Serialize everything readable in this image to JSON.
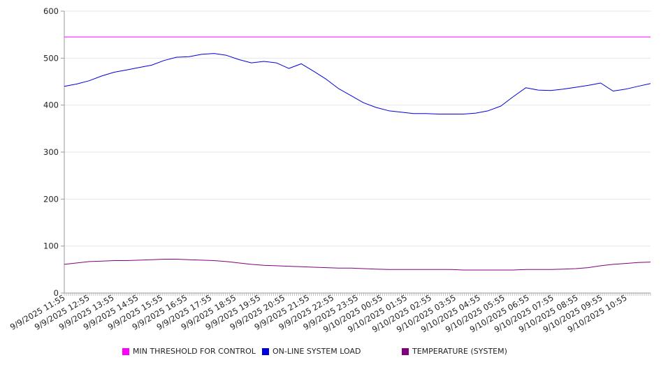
{
  "chart_data": {
    "type": "line",
    "title": "",
    "xlabel": "",
    "ylabel": "",
    "ylim": [
      0,
      600
    ],
    "y_ticks": [
      0,
      100,
      200,
      300,
      400,
      500,
      600
    ],
    "grid": "horizontal",
    "legend_position": "bottom",
    "x_tick_labels": [
      "9/9/2025 11:55",
      "9/9/2025 12:55",
      "9/9/2025 13:55",
      "9/9/2025 14:55",
      "9/9/2025 15:55",
      "9/9/2025 16:55",
      "9/9/2025 17:55",
      "9/9/2025 18:55",
      "9/9/2025 19:55",
      "9/9/2025 20:55",
      "9/9/2025 21:55",
      "9/9/2025 22:55",
      "9/9/2025 23:55",
      "9/10/2025 00:55",
      "9/10/2025 01:55",
      "9/10/2025 02:55",
      "9/10/2025 03:55",
      "9/10/2025 04:55",
      "9/10/2025 05:55",
      "9/10/2025 06:55",
      "9/10/2025 07:55",
      "9/10/2025 08:55",
      "9/10/2025 09:55",
      "9/10/2025 10:55"
    ],
    "x": [
      "9/9/2025 11:55",
      "9/9/2025 12:25",
      "9/9/2025 12:55",
      "9/9/2025 13:25",
      "9/9/2025 13:55",
      "9/9/2025 14:25",
      "9/9/2025 14:55",
      "9/9/2025 15:25",
      "9/9/2025 15:55",
      "9/9/2025 16:25",
      "9/9/2025 16:55",
      "9/9/2025 17:25",
      "9/9/2025 17:55",
      "9/9/2025 18:25",
      "9/9/2025 18:55",
      "9/9/2025 19:25",
      "9/9/2025 19:55",
      "9/9/2025 20:25",
      "9/9/2025 20:55",
      "9/9/2025 21:25",
      "9/9/2025 21:55",
      "9/9/2025 22:25",
      "9/9/2025 22:55",
      "9/9/2025 23:25",
      "9/9/2025 23:55",
      "9/10/2025 00:25",
      "9/10/2025 00:55",
      "9/10/2025 01:25",
      "9/10/2025 01:55",
      "9/10/2025 02:25",
      "9/10/2025 02:55",
      "9/10/2025 03:25",
      "9/10/2025 03:55",
      "9/10/2025 04:25",
      "9/10/2025 04:55",
      "9/10/2025 05:25",
      "9/10/2025 05:55",
      "9/10/2025 06:25",
      "9/10/2025 06:55",
      "9/10/2025 07:25",
      "9/10/2025 07:55",
      "9/10/2025 08:25",
      "9/10/2025 08:55",
      "9/10/2025 09:25",
      "9/10/2025 09:55",
      "9/10/2025 10:25",
      "9/10/2025 10:55",
      "9/10/2025 11:25"
    ],
    "series": [
      {
        "name": "MIN THRESHOLD FOR CONTROL",
        "color": "#ff00ff",
        "values": [
          545,
          545,
          545,
          545,
          545,
          545,
          545,
          545,
          545,
          545,
          545,
          545,
          545,
          545,
          545,
          545,
          545,
          545,
          545,
          545,
          545,
          545,
          545,
          545,
          545,
          545,
          545,
          545,
          545,
          545,
          545,
          545,
          545,
          545,
          545,
          545,
          545,
          545,
          545,
          545,
          545,
          545,
          545,
          545,
          545,
          545,
          545,
          545
        ]
      },
      {
        "name": "ON-LINE SYSTEM LOAD",
        "color": "#0000dd",
        "values": [
          440,
          445,
          452,
          462,
          470,
          475,
          480,
          485,
          495,
          502,
          503,
          508,
          510,
          506,
          497,
          490,
          493,
          490,
          478,
          488,
          472,
          455,
          435,
          420,
          405,
          395,
          388,
          385,
          382,
          382,
          381,
          381,
          381,
          383,
          388,
          398,
          418,
          437,
          432,
          431,
          434,
          438,
          442,
          447,
          430,
          434,
          440,
          446
        ]
      },
      {
        "name": "TEMPERATURE (SYSTEM)",
        "color": "#800080",
        "values": [
          61,
          64,
          67,
          68,
          69,
          69,
          70,
          71,
          72,
          72,
          71,
          70,
          69,
          67,
          64,
          61,
          59,
          58,
          57,
          56,
          55,
          54,
          53,
          53,
          52,
          51,
          50,
          50,
          50,
          50,
          50,
          50,
          49,
          49,
          49,
          49,
          49,
          50,
          50,
          50,
          51,
          52,
          54,
          58,
          61,
          63,
          65,
          66
        ]
      }
    ]
  }
}
